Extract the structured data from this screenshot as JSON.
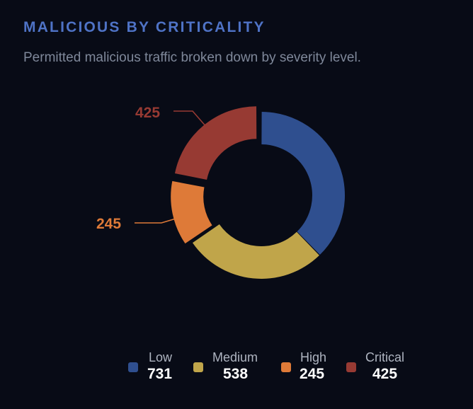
{
  "panel": {
    "title": "MALICIOUS BY CRITICALITY",
    "subtitle": "Permitted malicious traffic broken down by severity level."
  },
  "colors": {
    "background": "#080b16",
    "title": "#4f73c6",
    "subtitle": "#7f889a"
  },
  "chart_data": {
    "type": "pie",
    "variant": "donut",
    "categories": [
      "Low",
      "Medium",
      "High",
      "Critical"
    ],
    "values": [
      731,
      538,
      245,
      425
    ],
    "colors": [
      "#2f4f8f",
      "#c0a54a",
      "#de7a38",
      "#973a33"
    ],
    "exploded": [
      "High",
      "Critical"
    ],
    "callouts": [
      "High",
      "Critical"
    ],
    "legend_position": "bottom-center",
    "grid": false
  },
  "legend": {
    "items": [
      {
        "label": "Low",
        "value": "731"
      },
      {
        "label": "Medium",
        "value": "538"
      },
      {
        "label": "High",
        "value": "245"
      },
      {
        "label": "Critical",
        "value": "425"
      }
    ]
  },
  "callouts": {
    "high": "245",
    "critical": "425"
  }
}
